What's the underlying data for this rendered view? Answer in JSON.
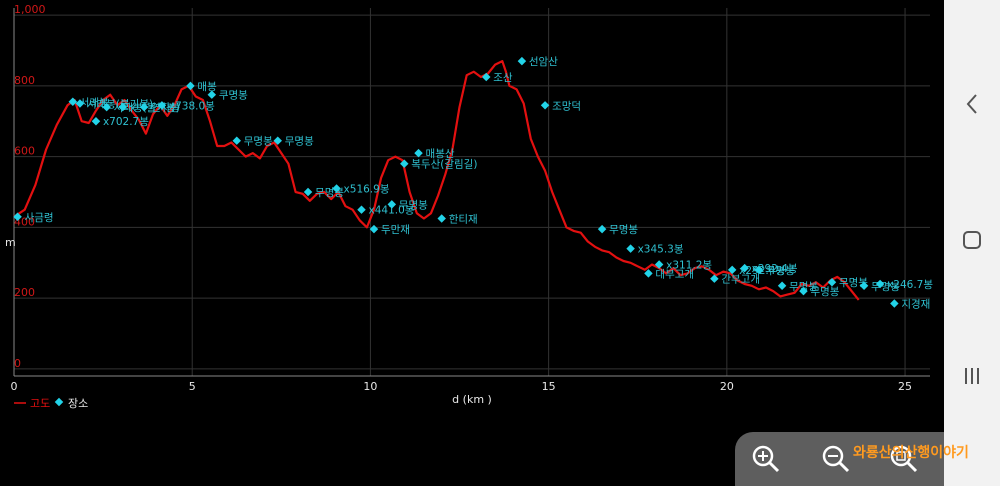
{
  "chart_data": {
    "type": "line",
    "title": "",
    "xlabel": "d (km )",
    "ylabel": "m",
    "xlim": [
      0,
      25.7
    ],
    "ylim": [
      -20,
      1020
    ],
    "xticks": [
      "0",
      "5",
      "10",
      "15",
      "20",
      "25"
    ],
    "xtick_values": [
      0,
      5,
      10,
      15,
      20,
      25
    ],
    "yticks": [
      "0",
      "200",
      "400",
      "600",
      "800",
      "1,000"
    ],
    "ytick_values": [
      0,
      200,
      400,
      600,
      800,
      1000
    ],
    "grid": true,
    "legend_position": "bottom-left",
    "colors": {
      "elevation_line": "#e31010",
      "place_marker": "#22d3e8",
      "tick_label": "#d01818",
      "grid": "#333333",
      "place_label": "#2fc0d0"
    },
    "series": [
      {
        "name": "고도",
        "type": "line",
        "points": [
          [
            0.0,
            430
          ],
          [
            0.3,
            450
          ],
          [
            0.6,
            520
          ],
          [
            0.9,
            620
          ],
          [
            1.2,
            690
          ],
          [
            1.5,
            745
          ],
          [
            1.7,
            760
          ],
          [
            1.9,
            700
          ],
          [
            2.1,
            695
          ],
          [
            2.3,
            730
          ],
          [
            2.5,
            760
          ],
          [
            2.7,
            775
          ],
          [
            2.9,
            745
          ],
          [
            3.1,
            760
          ],
          [
            3.3,
            730
          ],
          [
            3.5,
            705
          ],
          [
            3.7,
            665
          ],
          [
            3.9,
            720
          ],
          [
            4.1,
            745
          ],
          [
            4.3,
            715
          ],
          [
            4.5,
            745
          ],
          [
            4.7,
            790
          ],
          [
            4.9,
            800
          ],
          [
            5.1,
            770
          ],
          [
            5.3,
            760
          ],
          [
            5.5,
            700
          ],
          [
            5.7,
            630
          ],
          [
            5.9,
            630
          ],
          [
            6.1,
            640
          ],
          [
            6.3,
            620
          ],
          [
            6.5,
            600
          ],
          [
            6.7,
            610
          ],
          [
            6.9,
            595
          ],
          [
            7.1,
            630
          ],
          [
            7.3,
            640
          ],
          [
            7.5,
            610
          ],
          [
            7.7,
            580
          ],
          [
            7.9,
            500
          ],
          [
            8.1,
            495
          ],
          [
            8.3,
            475
          ],
          [
            8.5,
            495
          ],
          [
            8.7,
            500
          ],
          [
            8.9,
            480
          ],
          [
            9.1,
            500
          ],
          [
            9.3,
            460
          ],
          [
            9.5,
            450
          ],
          [
            9.7,
            420
          ],
          [
            9.9,
            400
          ],
          [
            10.1,
            450
          ],
          [
            10.3,
            540
          ],
          [
            10.5,
            590
          ],
          [
            10.7,
            600
          ],
          [
            10.9,
            590
          ],
          [
            11.1,
            500
          ],
          [
            11.3,
            440
          ],
          [
            11.5,
            425
          ],
          [
            11.7,
            440
          ],
          [
            11.9,
            490
          ],
          [
            12.1,
            550
          ],
          [
            12.3,
            620
          ],
          [
            12.5,
            740
          ],
          [
            12.7,
            830
          ],
          [
            12.9,
            840
          ],
          [
            13.1,
            825
          ],
          [
            13.3,
            835
          ],
          [
            13.5,
            860
          ],
          [
            13.7,
            870
          ],
          [
            13.8,
            840
          ],
          [
            13.9,
            800
          ],
          [
            14.1,
            790
          ],
          [
            14.3,
            750
          ],
          [
            14.5,
            650
          ],
          [
            14.7,
            600
          ],
          [
            14.9,
            560
          ],
          [
            15.1,
            500
          ],
          [
            15.3,
            450
          ],
          [
            15.5,
            400
          ],
          [
            15.7,
            390
          ],
          [
            15.9,
            385
          ],
          [
            16.1,
            360
          ],
          [
            16.3,
            345
          ],
          [
            16.5,
            335
          ],
          [
            16.7,
            330
          ],
          [
            16.9,
            315
          ],
          [
            17.1,
            305
          ],
          [
            17.3,
            300
          ],
          [
            17.5,
            290
          ],
          [
            17.7,
            280
          ],
          [
            17.9,
            295
          ],
          [
            18.1,
            285
          ],
          [
            18.3,
            270
          ],
          [
            18.5,
            285
          ],
          [
            18.7,
            265
          ],
          [
            18.9,
            270
          ],
          [
            19.1,
            285
          ],
          [
            19.3,
            290
          ],
          [
            19.5,
            280
          ],
          [
            19.7,
            265
          ],
          [
            19.9,
            275
          ],
          [
            20.1,
            270
          ],
          [
            20.3,
            250
          ],
          [
            20.5,
            240
          ],
          [
            20.7,
            235
          ],
          [
            20.9,
            225
          ],
          [
            21.1,
            230
          ],
          [
            21.3,
            220
          ],
          [
            21.5,
            205
          ],
          [
            21.7,
            210
          ],
          [
            21.9,
            215
          ],
          [
            22.1,
            240
          ],
          [
            22.3,
            235
          ],
          [
            22.5,
            245
          ],
          [
            22.7,
            230
          ],
          [
            22.9,
            250
          ],
          [
            23.1,
            260
          ],
          [
            23.3,
            245
          ],
          [
            23.5,
            220
          ],
          [
            23.7,
            195
          ]
        ]
      },
      {
        "name": "장소",
        "type": "scatter",
        "points": [
          {
            "x": 0.1,
            "y": 430,
            "label": "사금령"
          },
          {
            "x": 1.65,
            "y": 755,
            "label": "서래봉"
          },
          {
            "x": 1.85,
            "y": 750,
            "label": "서래봉(불기봉)"
          },
          {
            "x": 2.3,
            "y": 700,
            "label": "x702.7봉"
          },
          {
            "x": 2.6,
            "y": 740,
            "label": "서래봉(불기봉)"
          },
          {
            "x": 3.05,
            "y": 740,
            "label": "x"
          },
          {
            "x": 3.65,
            "y": 740,
            "label": "연자봉"
          },
          {
            "x": 4.15,
            "y": 745,
            "label": "x738.0봉"
          },
          {
            "x": 4.95,
            "y": 800,
            "label": "매봉"
          },
          {
            "x": 5.55,
            "y": 775,
            "label": "쿠명봉"
          },
          {
            "x": 6.25,
            "y": 645,
            "label": "무명봉"
          },
          {
            "x": 7.4,
            "y": 645,
            "label": "무명봉"
          },
          {
            "x": 8.25,
            "y": 500,
            "label": "무명봉"
          },
          {
            "x": 9.05,
            "y": 510,
            "label": "x516.9봉"
          },
          {
            "x": 9.75,
            "y": 450,
            "label": "x441.0봉"
          },
          {
            "x": 10.1,
            "y": 395,
            "label": "두만재"
          },
          {
            "x": 10.6,
            "y": 465,
            "label": "무명봉"
          },
          {
            "x": 10.95,
            "y": 580,
            "label": "복두산(갈림길)"
          },
          {
            "x": 11.35,
            "y": 610,
            "label": "매봉산"
          },
          {
            "x": 12.0,
            "y": 425,
            "label": "한티재"
          },
          {
            "x": 13.25,
            "y": 825,
            "label": "조산"
          },
          {
            "x": 14.25,
            "y": 870,
            "label": "선암산"
          },
          {
            "x": 14.9,
            "y": 745,
            "label": "조망덕"
          },
          {
            "x": 16.5,
            "y": 395,
            "label": "무명봉"
          },
          {
            "x": 17.3,
            "y": 340,
            "label": "x345.3봉"
          },
          {
            "x": 17.8,
            "y": 270,
            "label": "대부고개"
          },
          {
            "x": 18.1,
            "y": 295,
            "label": "x311.2봉"
          },
          {
            "x": 19.65,
            "y": 255,
            "label": "간부고개"
          },
          {
            "x": 20.15,
            "y": 280,
            "label": "x292.4봉"
          },
          {
            "x": 20.5,
            "y": 285,
            "label": "x292.4봉"
          },
          {
            "x": 20.9,
            "y": 280,
            "label": "무명봉"
          },
          {
            "x": 21.55,
            "y": 235,
            "label": "무명봉"
          },
          {
            "x": 22.15,
            "y": 220,
            "label": "무명봉"
          },
          {
            "x": 22.95,
            "y": 245,
            "label": "무명봉"
          },
          {
            "x": 23.85,
            "y": 235,
            "label": "무명봉"
          },
          {
            "x": 24.3,
            "y": 240,
            "label": "x246.7봉"
          },
          {
            "x": 24.7,
            "y": 185,
            "label": "지경재"
          }
        ]
      }
    ]
  },
  "nav": {
    "back_icon": "chevron-left-icon",
    "home_icon": "square-icon",
    "recent_icon": "three-bars-icon"
  },
  "zoom": {
    "zoom_in_icon": "zoom-in-icon",
    "zoom_out_icon": "zoom-out-icon",
    "zoom_reset_icon": "zoom-reset-icon"
  },
  "watermark": "와룡산의산행이야기"
}
